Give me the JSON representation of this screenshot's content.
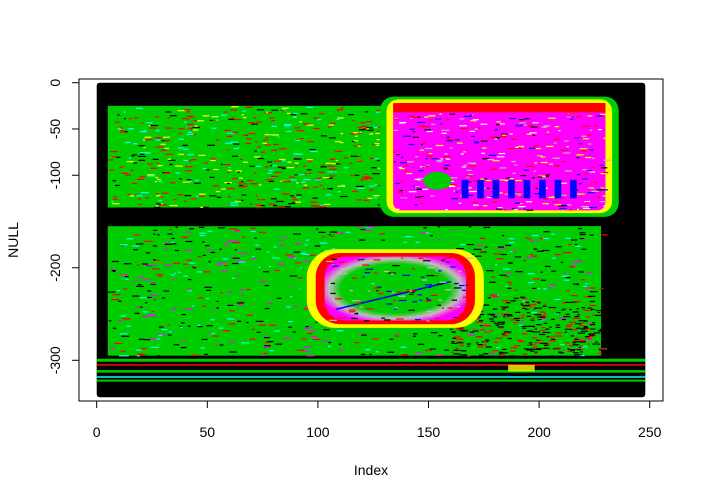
{
  "chart_data": {
    "type": "scatter",
    "title": "",
    "xlabel": "Index",
    "ylabel": "NULL",
    "xlim": [
      -8,
      256
    ],
    "ylim": [
      -344,
      4
    ],
    "x_ticks": [
      0,
      50,
      100,
      150,
      200,
      250
    ],
    "x_tick_labels": [
      "0",
      "50",
      "100",
      "150",
      "200",
      "250"
    ],
    "y_ticks": [
      0,
      -50,
      -100,
      -200,
      -300
    ],
    "y_tick_labels": [
      "0",
      "-50",
      "-100",
      "-200",
      "-300"
    ],
    "x_range": [
      0,
      248
    ],
    "y_range": [
      -340,
      0
    ],
    "grid": false,
    "legend": "none",
    "point_colors": [
      "#000000",
      "#00cd00",
      "#ff0000",
      "#ffff00",
      "#0000ff",
      "#ff00ff",
      "#00ffff",
      "#bebebe"
    ],
    "regions": [
      {
        "name": "background",
        "color": "#000000",
        "x": [
          0,
          248
        ],
        "y": [
          -340,
          0
        ]
      },
      {
        "name": "upper-left-field",
        "color": "#00cd00",
        "x": [
          5,
          130
        ],
        "y": [
          -135,
          -25
        ]
      },
      {
        "name": "lower-left-field",
        "color": "#00cd00",
        "x": [
          5,
          228
        ],
        "y": [
          -295,
          -155
        ]
      },
      {
        "name": "upper-right-block",
        "color": "#ff00ff",
        "x": [
          130,
          234
        ],
        "y": [
          -142,
          -18
        ]
      },
      {
        "name": "center-oval",
        "color": "#00cd00",
        "x": [
          95,
          175
        ],
        "y": [
          -265,
          -180
        ]
      },
      {
        "name": "bottom-band",
        "color": "#00cd00",
        "x": [
          0,
          248
        ],
        "y": [
          -322,
          -300
        ]
      }
    ]
  }
}
